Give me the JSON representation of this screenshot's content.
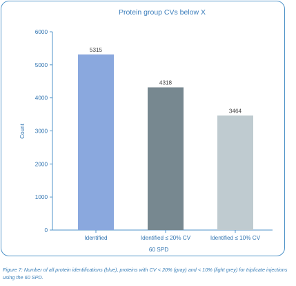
{
  "chart_data": {
    "type": "bar",
    "title": "Protein group CVs below X",
    "categories": [
      "Identified",
      "Identified ≤ 20% CV",
      "Identified ≤ 10% CV"
    ],
    "values": [
      5315,
      4318,
      3464
    ],
    "colors": [
      "#8aa8de",
      "#778890",
      "#bfcbd0"
    ],
    "data_labels": [
      "5315",
      "4318",
      "3464"
    ],
    "xlabel": "60 SPD",
    "ylabel": "Count",
    "ylim": [
      0,
      6000
    ],
    "yticks": [
      0,
      1000,
      2000,
      3000,
      4000,
      5000,
      6000
    ],
    "ytick_labels": [
      "0",
      "1000",
      "2000",
      "3000",
      "4000",
      "5000",
      "6000"
    ],
    "grid": false,
    "legend": "none"
  },
  "caption": "Figure 7: Number of all protein identifications (blue), proteins with CV < 20% (gray) and < 10% (light grey) for triplicate injections using the 60 SPD."
}
